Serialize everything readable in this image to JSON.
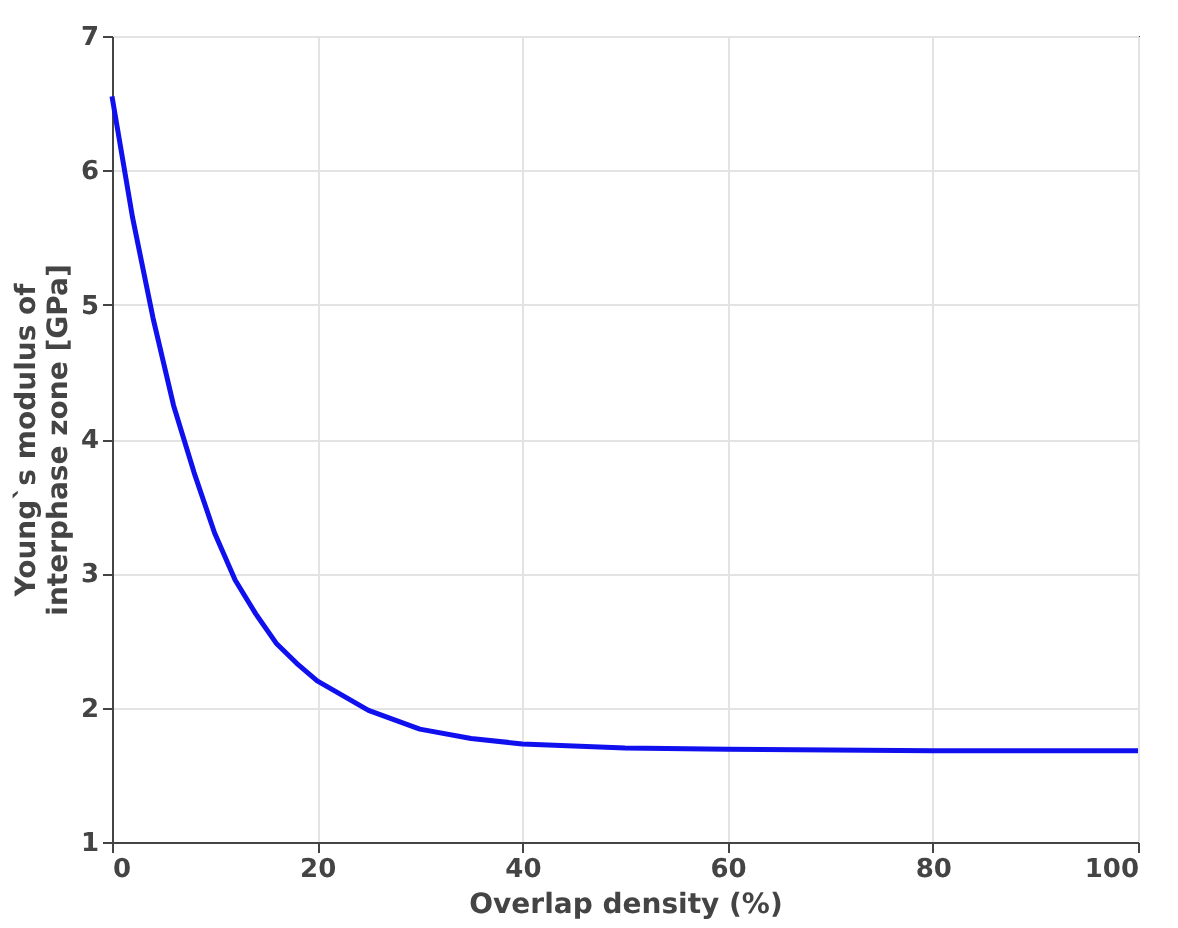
{
  "chart_data": {
    "type": "line",
    "xlabel": "Overlap density (%)",
    "ylabel": "Young`s modulus of\ninterphase zone [GPa]",
    "x": [
      0,
      2,
      4,
      6,
      8,
      10,
      12,
      14,
      16,
      18,
      20,
      25,
      30,
      35,
      40,
      50,
      60,
      80,
      100
    ],
    "series": [
      {
        "color": "#1010ee",
        "values": [
          6.55,
          5.65,
          4.9,
          4.25,
          3.75,
          3.3,
          2.95,
          2.7,
          2.48,
          2.33,
          2.2,
          1.98,
          1.84,
          1.77,
          1.73,
          1.7,
          1.69,
          1.68,
          1.68
        ]
      }
    ],
    "xlim": [
      0,
      100
    ],
    "xticks": [
      0,
      20,
      40,
      60,
      80,
      100
    ],
    "ylim": [
      1,
      7
    ],
    "yticks": [
      1,
      2,
      3,
      4,
      5,
      6,
      7
    ],
    "grid": true,
    "legend": false,
    "marker": "none",
    "line_style": "solid"
  }
}
